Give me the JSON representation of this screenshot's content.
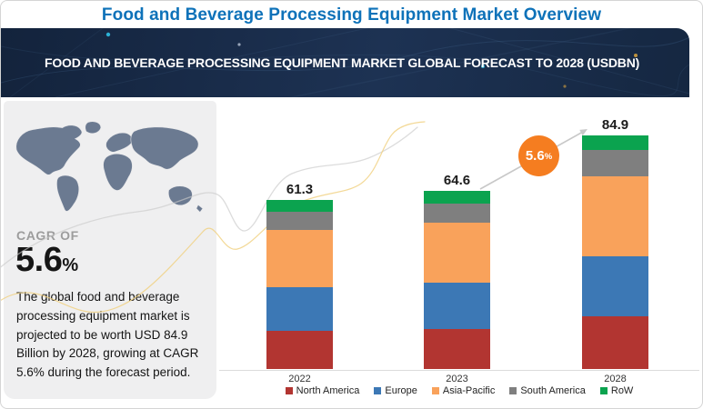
{
  "header": {
    "title": "Food and Beverage Processing Equipment Market Overview"
  },
  "banner": {
    "text": "FOOD AND BEVERAGE PROCESSING EQUIPMENT MARKET GLOBAL FORECAST TO 2028 (USDBN)"
  },
  "sidebar": {
    "cagr_label": "CAGR OF",
    "cagr_value": "5.6",
    "cagr_unit": "%",
    "description": "The global food and beverage processing equipment market is projected to be worth USD 84.9 Billion by 2028, growing at CAGR 5.6% during the forecast period.",
    "map_color": "#6b7a91"
  },
  "chart_data": {
    "type": "bar",
    "stacked": true,
    "title": "FOOD AND BEVERAGE PROCESSING EQUIPMENT MARKET GLOBAL FORECAST TO 2028 (USDBN)",
    "unit": "USD Billion",
    "categories": [
      "2022",
      "2023",
      "2028"
    ],
    "totals": [
      61.3,
      64.6,
      84.9
    ],
    "series": [
      {
        "name": "North America",
        "color": "#b23531",
        "values": [
          14.0,
          14.5,
          19.3
        ]
      },
      {
        "name": "Europe",
        "color": "#3c78b5",
        "values": [
          15.7,
          17.0,
          21.7
        ]
      },
      {
        "name": "Asia-Pacific",
        "color": "#f9a25b",
        "values": [
          20.9,
          21.5,
          29.1
        ]
      },
      {
        "name": "South America",
        "color": "#7f7f7f",
        "values": [
          6.4,
          7.0,
          9.6
        ]
      },
      {
        "name": "RoW",
        "color": "#0ba34f",
        "values": [
          4.3,
          4.6,
          5.2
        ]
      }
    ],
    "xlabel": "",
    "ylabel": "",
    "ylim": [
      0,
      90
    ],
    "grid": false,
    "legend_position": "bottom",
    "annotation": {
      "cagr_value": "5.6",
      "cagr_unit": "%",
      "circle_color": "#f57d20"
    }
  }
}
